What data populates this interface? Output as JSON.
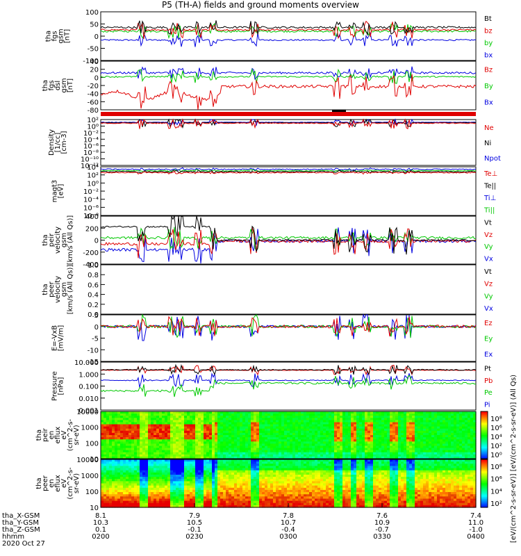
{
  "title": "P5 (TH-A) fields and ground moments overview",
  "date": "2020 Oct 27",
  "colors": {
    "black": "#000000",
    "red": "#e00000",
    "green": "#00c800",
    "blue": "#0000e0"
  },
  "chart_data": [
    {
      "type": "line",
      "name": "fgs_gsm",
      "ylabel": [
        "tha",
        "fgs",
        "gsm",
        "[nT]"
      ],
      "ylim": [
        -100,
        100
      ],
      "yticks": [
        "100",
        "50",
        "0",
        "-50",
        "-100"
      ],
      "series": [
        {
          "name": "Bt",
          "color": "black"
        },
        {
          "name": "bz",
          "color": "red"
        },
        {
          "name": "by",
          "color": "green"
        },
        {
          "name": "bx",
          "color": "blue"
        }
      ]
    },
    {
      "type": "line",
      "name": "fgs_dsl",
      "ylabel": [
        "tha",
        "fgs",
        "dsl",
        "gsm",
        "[nT]"
      ],
      "ylim": [
        -90,
        40
      ],
      "yticks": [
        "40",
        "20",
        "0",
        "-20",
        "-40",
        "-60",
        "-80"
      ],
      "series": [
        {
          "name": "Bz",
          "color": "red"
        },
        {
          "name": "By",
          "color": "green"
        },
        {
          "name": "Bx",
          "color": "blue"
        }
      ]
    },
    {
      "type": "line",
      "name": "density",
      "ylabel": [
        "Density",
        "[1/cc]",
        "[cm-3]"
      ],
      "yticks": [
        "10²",
        "10⁰",
        "10⁻²",
        "10⁻⁴",
        "10⁻⁶",
        "10⁻⁸",
        "10⁻¹⁰",
        "10⁻¹²"
      ],
      "series": [
        {
          "name": "Ne",
          "color": "red"
        },
        {
          "name": "Ni",
          "color": "black"
        },
        {
          "name": "Npot",
          "color": "blue"
        }
      ]
    },
    {
      "type": "line",
      "name": "temperature",
      "ylabel": [
        "magt3",
        "[eV]"
      ],
      "yticks": [
        "10⁴",
        "10²",
        "10⁰",
        "10⁻²",
        "10⁻⁴",
        "10⁻⁶",
        "10⁻⁸"
      ],
      "series": [
        {
          "name": "Te⊥",
          "color": "red"
        },
        {
          "name": "Te||",
          "color": "black"
        },
        {
          "name": "Ti⊥",
          "color": "blue"
        },
        {
          "name": "Ti||",
          "color": "green"
        }
      ]
    },
    {
      "type": "line",
      "name": "peir_velocity",
      "ylabel": [
        "tha",
        "peir",
        "velocity",
        "gsm",
        "[km/s (All Qs)]"
      ],
      "ylim": [
        -400,
        400
      ],
      "yticks": [
        "400",
        "200",
        "0",
        "-200",
        "-400"
      ],
      "series": [
        {
          "name": "Vt",
          "color": "black"
        },
        {
          "name": "Vz",
          "color": "red"
        },
        {
          "name": "Vy",
          "color": "green"
        },
        {
          "name": "Vx",
          "color": "blue"
        }
      ]
    },
    {
      "type": "line",
      "name": "peer_velocity",
      "ylabel": [
        "tha",
        "peer",
        "velocity",
        "gsm",
        "[km/s (All Qs)]"
      ],
      "ylim": [
        0,
        1
      ],
      "yticks": [
        "1.0",
        "0.8",
        "0.6",
        "0.4",
        "0.2",
        "0.0"
      ],
      "series": [
        {
          "name": "Vt",
          "color": "black"
        },
        {
          "name": "Vz",
          "color": "red"
        },
        {
          "name": "Vy",
          "color": "green"
        },
        {
          "name": "Vx",
          "color": "blue"
        }
      ]
    },
    {
      "type": "line",
      "name": "efield",
      "ylabel": [
        "E=-VxB",
        "[mV/m]"
      ],
      "ylim": [
        -15,
        5
      ],
      "yticks": [
        "5",
        "0",
        "-5",
        "-10",
        "-15"
      ],
      "series": [
        {
          "name": "Ez",
          "color": "red"
        },
        {
          "name": "Ey",
          "color": "green"
        },
        {
          "name": "Ex",
          "color": "blue"
        }
      ]
    },
    {
      "type": "line",
      "name": "pressure",
      "ylabel": [
        "Pressure",
        "[nPa]"
      ],
      "yticks": [
        "10.000",
        "1.000",
        "0.100",
        "0.010",
        "0.001"
      ],
      "series": [
        {
          "name": "Pt",
          "color": "black"
        },
        {
          "name": "Pb",
          "color": "red"
        },
        {
          "name": "Pe",
          "color": "green"
        },
        {
          "name": "Pi",
          "color": "blue"
        }
      ]
    },
    {
      "type": "heatmap",
      "name": "peir_en_eflux",
      "ylabel": [
        "tha",
        "peir",
        "en",
        "eflux",
        "eV",
        "(cm^2-s-",
        "sr-eV)"
      ],
      "yticks": [
        "10000",
        "1000",
        "100",
        "10"
      ],
      "colorbar_ticks": [
        "10⁸",
        "10⁶",
        "10⁴",
        "10²",
        "10⁰"
      ]
    },
    {
      "type": "heatmap",
      "name": "peer_en_eflux",
      "ylabel": [
        "tha",
        "peer",
        "en",
        "eflux",
        "eV",
        "(cm^2-s-",
        "sr-eV)"
      ],
      "yticks": [
        "10000",
        "1000",
        "100",
        "10"
      ],
      "colorbar_ticks": [
        "10⁸",
        "10⁶",
        "10⁴",
        "10²"
      ]
    }
  ],
  "colorbar_label": "[eV/(cm^2-s-sr-eV)] [eV/(cm^2-s-sr-eV)] (All Qs)",
  "x_axis": {
    "row_labels": [
      "tha_X-GSM",
      "tha_Y-GSM",
      "tha_Z-GSM",
      "hhmm",
      "2020 Oct 27"
    ],
    "ticks": [
      {
        "x_gsm": "8.1",
        "y_gsm": "10.3",
        "z_gsm": "0.1",
        "hhmm": "0200"
      },
      {
        "x_gsm": "7.9",
        "y_gsm": "10.5",
        "z_gsm": "-0.1",
        "hhmm": "0230"
      },
      {
        "x_gsm": "7.8",
        "y_gsm": "10.7",
        "z_gsm": "-0.4",
        "hhmm": "0300"
      },
      {
        "x_gsm": "7.6",
        "y_gsm": "10.9",
        "z_gsm": "-0.7",
        "hhmm": "0330"
      },
      {
        "x_gsm": "7.4",
        "y_gsm": "11.0",
        "z_gsm": "-1.0",
        "hhmm": "0400"
      }
    ]
  }
}
